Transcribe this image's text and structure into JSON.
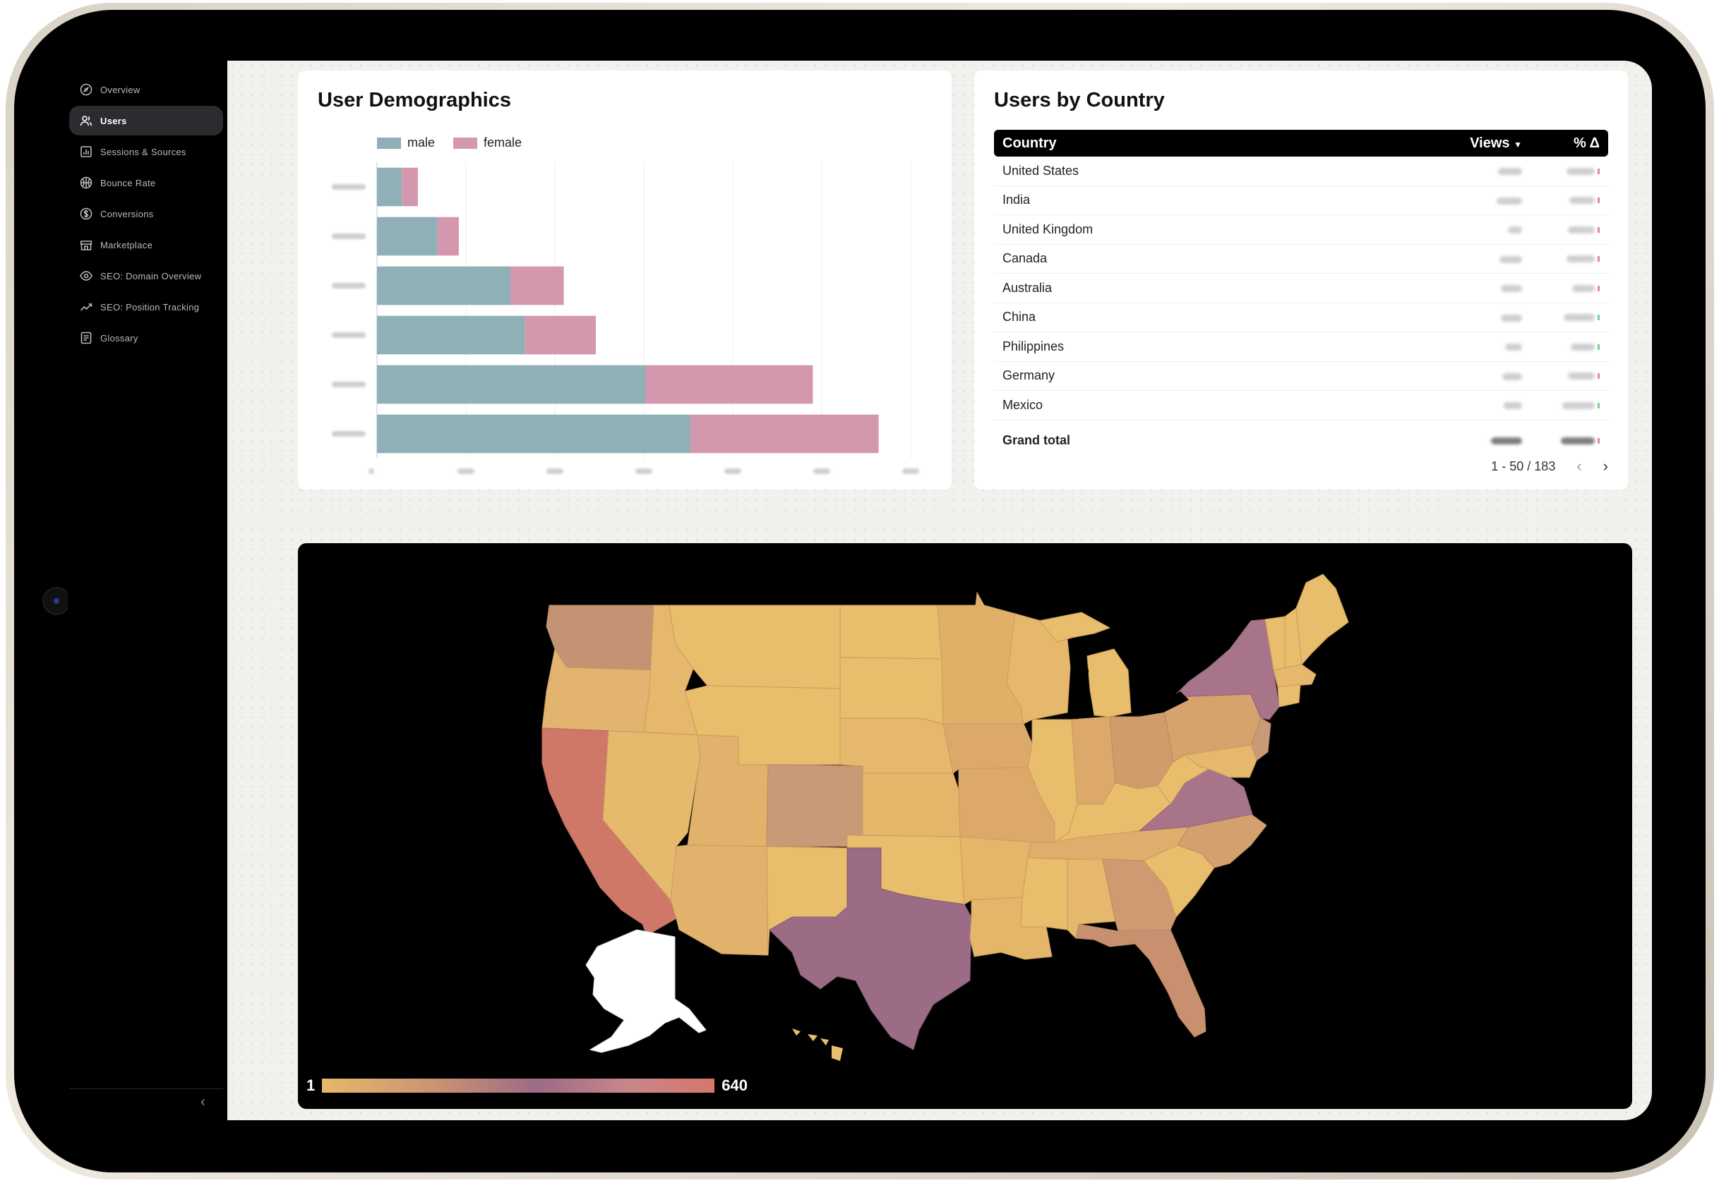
{
  "sidebar": {
    "items": [
      {
        "label": "Overview",
        "icon": "compass-icon",
        "active": false
      },
      {
        "label": "Users",
        "icon": "users-icon",
        "active": true
      },
      {
        "label": "Sessions & Sources",
        "icon": "bar-chart-icon",
        "active": false
      },
      {
        "label": "Bounce Rate",
        "icon": "ball-icon",
        "active": false
      },
      {
        "label": "Conversions",
        "icon": "dollar-icon",
        "active": false
      },
      {
        "label": "Marketplace",
        "icon": "store-icon",
        "active": false
      },
      {
        "label": "SEO: Domain Overview",
        "icon": "eye-icon",
        "active": false
      },
      {
        "label": "SEO: Position Tracking",
        "icon": "trend-icon",
        "active": false
      },
      {
        "label": "Glossary",
        "icon": "list-icon",
        "active": false
      }
    ],
    "collapse_label": "‹"
  },
  "demographics": {
    "title": "User Demographics",
    "legend": [
      {
        "name": "male",
        "color": "#8fb0b6"
      },
      {
        "name": "female",
        "color": "#d398ae"
      }
    ]
  },
  "chart_data": {
    "type": "bar",
    "orientation": "horizontal",
    "stacked": true,
    "categories": [
      "",
      "",
      "",
      "",
      "",
      ""
    ],
    "series": [
      {
        "name": "male",
        "color": "#8fb0b6",
        "values": [
          14,
          34,
          75,
          83,
          151,
          176
        ]
      },
      {
        "name": "female",
        "color": "#d398ae",
        "values": [
          9,
          12,
          30,
          40,
          94,
          106
        ]
      }
    ],
    "xlim": [
      0,
      300
    ],
    "x_ticks": [
      "",
      "",
      "",
      "",
      "",
      "",
      ""
    ],
    "grid": true,
    "legend_position": "top-left",
    "labels_obscured": true
  },
  "users_by_country": {
    "title": "Users by Country",
    "columns": {
      "country": "Country",
      "views": "Views",
      "views_sort": "▼",
      "pct": "% Δ"
    },
    "rows": [
      {
        "country": "United States",
        "trend": "red"
      },
      {
        "country": "India",
        "trend": "red"
      },
      {
        "country": "United Kingdom",
        "trend": "red"
      },
      {
        "country": "Canada",
        "trend": "red"
      },
      {
        "country": "Australia",
        "trend": "red"
      },
      {
        "country": "China",
        "trend": "green"
      },
      {
        "country": "Philippines",
        "trend": "green"
      },
      {
        "country": "Germany",
        "trend": "red"
      },
      {
        "country": "Mexico",
        "trend": "green"
      }
    ],
    "total_label": "Grand total",
    "pagination": "1 - 50 / 183",
    "prev_icon": "‹",
    "next_icon": "›"
  },
  "map": {
    "scale_min": "1",
    "scale_max": "640",
    "colors": {
      "low": "#e8b86a",
      "mid": "#9c6b86",
      "high": "#d5776a"
    }
  }
}
